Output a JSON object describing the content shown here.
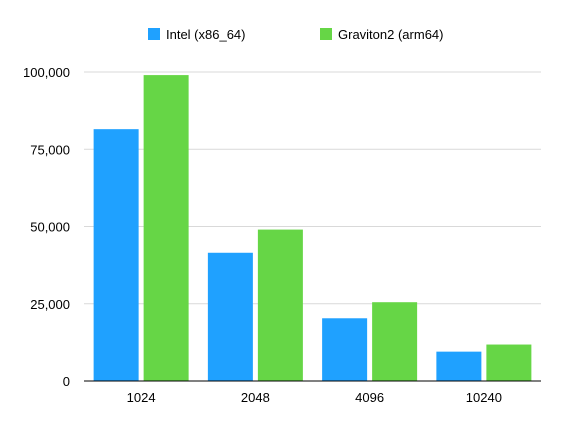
{
  "chart_data": {
    "type": "bar",
    "title": "",
    "xlabel": "",
    "ylabel": "",
    "categories": [
      "1024",
      "2048",
      "4096",
      "10240"
    ],
    "series": [
      {
        "name": "Intel (x86_64)",
        "color": "#1FA1FF",
        "values": [
          81500,
          41500,
          20300,
          9500
        ]
      },
      {
        "name": "Graviton2 (arm64)",
        "color": "#66D646",
        "values": [
          99000,
          49000,
          25500,
          11800
        ]
      }
    ],
    "ylim": [
      0,
      100000
    ],
    "yticks": [
      0,
      25000,
      50000,
      75000,
      100000
    ],
    "ytick_labels": [
      "0",
      "25,000",
      "50,000",
      "75,000",
      "100,000"
    ],
    "grid": true,
    "legend_position": "top"
  }
}
